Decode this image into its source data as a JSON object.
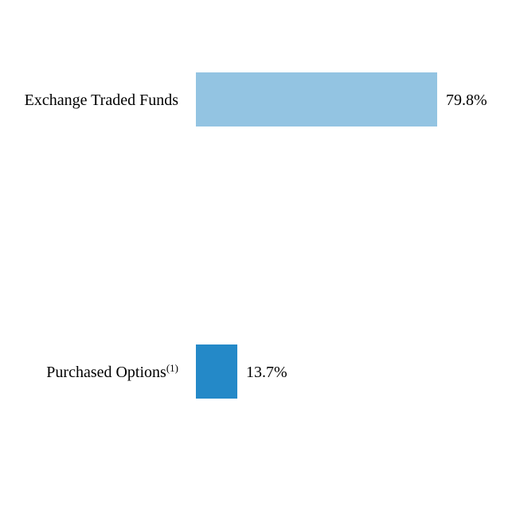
{
  "chart_data": {
    "type": "bar",
    "orientation": "horizontal",
    "categories": [
      "Exchange Traded Funds",
      "Purchased Options"
    ],
    "category_superscripts": [
      "",
      "(1)"
    ],
    "values": [
      79.8,
      13.7
    ],
    "value_labels": [
      "79.8%",
      "13.7%"
    ],
    "bar_colors": [
      "#93c4e2",
      "#2489c8"
    ],
    "xlim": [
      0,
      79.8
    ],
    "grid": false,
    "legend": "none"
  }
}
